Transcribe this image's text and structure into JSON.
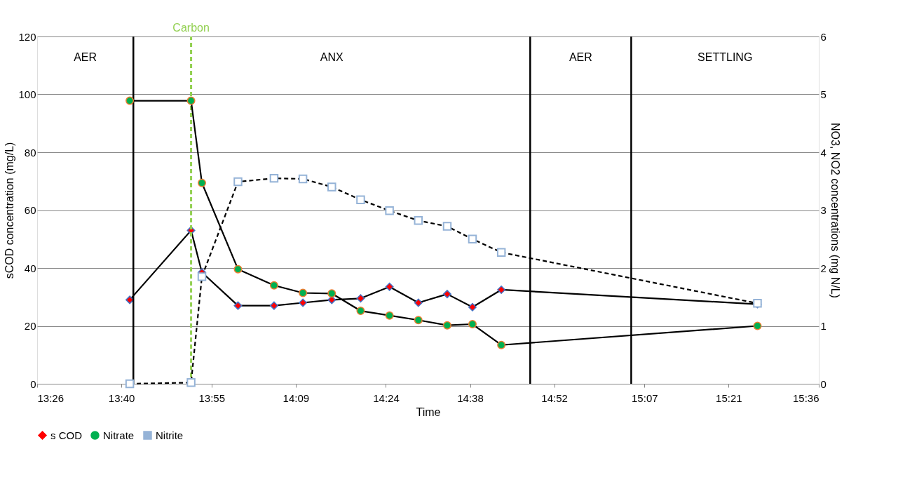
{
  "chart_data": {
    "type": "line",
    "xlabel": "Time",
    "ylabel": "sCOD concentration (mg/L)",
    "y2label": "NO3, NO2 concentrations (mg N/L)",
    "x": [
      13.69,
      13.86,
      13.89,
      13.99,
      14.09,
      14.17,
      14.25,
      14.33,
      14.41,
      14.49,
      14.57,
      14.64,
      14.72,
      15.43
    ],
    "series": [
      {
        "name": "s COD",
        "color": "#ff0000",
        "marker": "diamond",
        "line_style": "solid",
        "values": [
          29,
          53,
          38.5,
          27,
          27,
          28,
          29,
          29.5,
          33.5,
          28,
          31,
          26.5,
          32.5,
          27.5
        ]
      },
      {
        "name": "Nitrate",
        "color": "#00b050",
        "marker": "circle",
        "line_style": "solid",
        "axis": "y2",
        "values": [
          4.89,
          4.89,
          3.47,
          1.98,
          1.7,
          1.57,
          1.56,
          1.26,
          1.18,
          1.1,
          1.01,
          1.03,
          0.67,
          1.0
        ]
      },
      {
        "name": "Nitrite",
        "color": "#95b3d7",
        "marker": "square",
        "line_style": "dashed",
        "axis": "y2",
        "values": [
          0,
          0.02,
          1.85,
          3.49,
          3.55,
          3.54,
          3.4,
          3.18,
          2.99,
          2.82,
          2.72,
          2.5,
          2.27,
          1.39
        ]
      }
    ],
    "xlim": [
      13.4333,
      15.6
    ],
    "xticks": [
      {
        "value": 13.4333,
        "label": "13:26"
      },
      {
        "value": 13.6667,
        "label": "13:40"
      },
      {
        "value": 13.9167,
        "label": "13:55"
      },
      {
        "value": 14.15,
        "label": "14:09"
      },
      {
        "value": 14.4,
        "label": "14:24"
      },
      {
        "value": 14.6333,
        "label": "14:38"
      },
      {
        "value": 14.8667,
        "label": "14:52"
      },
      {
        "value": 15.1167,
        "label": "15:07"
      },
      {
        "value": 15.35,
        "label": "15:21"
      },
      {
        "value": 15.6,
        "label": "15:36"
      }
    ],
    "ylim": [
      0,
      120
    ],
    "yticks": [
      0,
      20,
      40,
      60,
      80,
      100,
      120
    ],
    "y2lim": [
      0,
      6
    ],
    "y2ticks": [
      0,
      1,
      2,
      3,
      4,
      5,
      6
    ],
    "ref_lines": [
      {
        "axis": "x",
        "value": 13.7,
        "color": "#000000",
        "line_style": "solid"
      },
      {
        "axis": "x",
        "value": 13.86,
        "label": "Carbon",
        "color": "#92d050",
        "line_style": "dashed"
      },
      {
        "axis": "x",
        "value": 14.8,
        "color": "#000000",
        "line_style": "solid"
      },
      {
        "axis": "x",
        "value": 15.08,
        "color": "#000000",
        "line_style": "solid"
      }
    ],
    "annotations": [
      "AER",
      "ANX",
      "AER",
      "SETTLING"
    ],
    "grid": "y",
    "legend": "bottom"
  }
}
